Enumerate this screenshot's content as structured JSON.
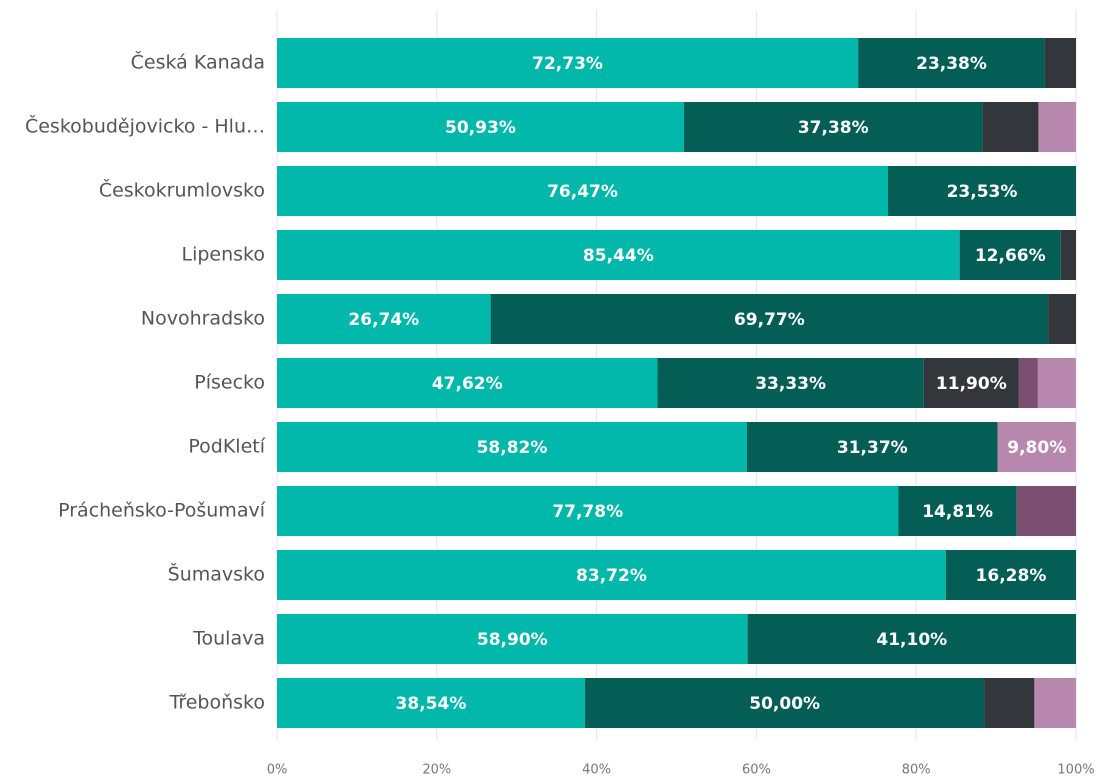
{
  "chart_data": {
    "type": "stacked_barh",
    "categories": [
      "Česká Kanada",
      "Českobudějovicko - Hlu…",
      "Českokrumlovsko",
      "Lipensko",
      "Novohradsko",
      "Písecko",
      "PodKletí",
      "Prácheňsko-Pošumaví",
      "Šumavsko",
      "Toulava",
      "Třeboňsko"
    ],
    "series": [
      {
        "color": "#01b8aa",
        "values": [
          72.73,
          50.93,
          76.47,
          85.44,
          26.74,
          47.62,
          58.82,
          77.78,
          83.72,
          58.9,
          38.54
        ],
        "value_labels": [
          "72,73%",
          "50,93%",
          "76,47%",
          "85,44%",
          "26,74%",
          "47,62%",
          "58,82%",
          "77,78%",
          "83,72%",
          "58,90%",
          "38,54%"
        ]
      },
      {
        "color": "#045e56",
        "values": [
          23.38,
          37.38,
          23.53,
          12.66,
          69.77,
          33.33,
          31.37,
          14.81,
          16.28,
          41.1,
          50.0
        ],
        "value_labels": [
          "23,38%",
          "37,38%",
          "23,53%",
          "12,66%",
          "69,77%",
          "33,33%",
          "31,37%",
          "14,81%",
          "16,28%",
          "41,10%",
          "50,00%"
        ]
      },
      {
        "color": "#33363a",
        "values": [
          3.89,
          6.99,
          null,
          1.9,
          3.49,
          11.9,
          null,
          null,
          null,
          null,
          6.25
        ],
        "value_labels": [
          null,
          null,
          null,
          null,
          null,
          "11,90%",
          null,
          null,
          null,
          null,
          null
        ]
      },
      {
        "color": "#7a4f72",
        "values": [
          null,
          null,
          null,
          null,
          null,
          2.38,
          null,
          7.41,
          null,
          null,
          null
        ],
        "value_labels": [
          null,
          null,
          null,
          null,
          null,
          null,
          null,
          null,
          null,
          null,
          null
        ]
      },
      {
        "color": "#b887ad",
        "values": [
          null,
          4.7,
          null,
          null,
          null,
          4.76,
          9.8,
          null,
          null,
          null,
          5.21
        ],
        "value_labels": [
          null,
          null,
          null,
          null,
          null,
          null,
          "9,80%",
          null,
          null,
          null,
          null
        ]
      }
    ],
    "xlim": [
      0,
      100
    ],
    "xticks": [
      {
        "value": 0,
        "label": "0%"
      },
      {
        "value": 20,
        "label": "20%"
      },
      {
        "value": 40,
        "label": "40%"
      },
      {
        "value": 60,
        "label": "60%"
      },
      {
        "value": 80,
        "label": "80%"
      },
      {
        "value": 100,
        "label": "100%"
      }
    ],
    "grid": true
  }
}
